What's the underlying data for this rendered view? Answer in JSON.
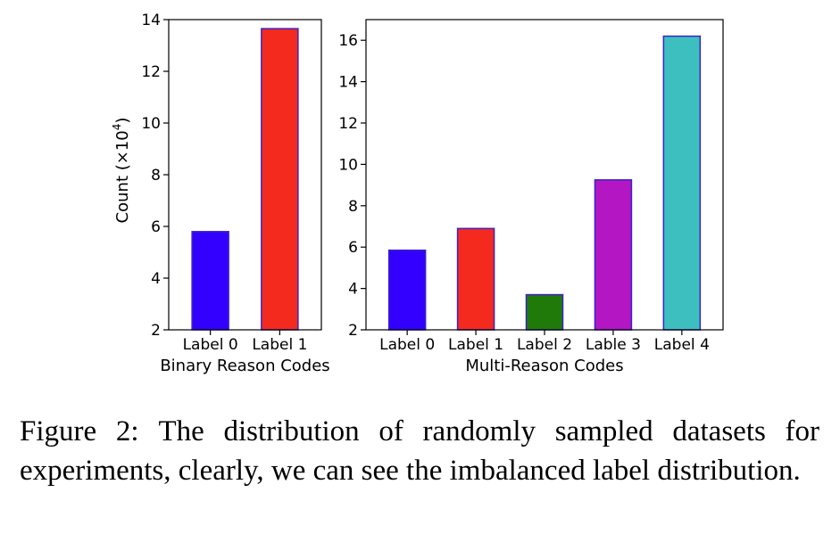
{
  "chart_data": [
    {
      "type": "bar",
      "categories": [
        "Label 0",
        "Label 1"
      ],
      "values": [
        5.8,
        13.65
      ],
      "colors": [
        "#3300ff",
        "#f52a1f"
      ],
      "edge_color": "#3a22c9",
      "title": "",
      "xlabel": "Binary Reason Codes",
      "ylabel_prefix": "Count (×10",
      "ylabel_exp": "4",
      "ylabel_suffix": ")",
      "ylim": [
        2,
        14
      ],
      "yticks": [
        2,
        4,
        6,
        8,
        10,
        12,
        14
      ],
      "grid": false
    },
    {
      "type": "bar",
      "categories": [
        "Label 0",
        "Label 1",
        "Label 2",
        "Lable 3",
        "Label 4"
      ],
      "values": [
        5.85,
        6.9,
        3.7,
        9.25,
        16.2
      ],
      "colors": [
        "#3300ff",
        "#f52a1f",
        "#1f7a0a",
        "#b316c2",
        "#3dbfbf"
      ],
      "edge_color": "#3a22c9",
      "title": "",
      "xlabel": "Multi-Reason Codes",
      "ylabel": "",
      "ylim": [
        2,
        17
      ],
      "yticks": [
        2,
        4,
        6,
        8,
        10,
        12,
        14,
        16
      ],
      "grid": false
    }
  ],
  "caption": {
    "label": "Figure 2:",
    "text": "The distribution of randomly sampled datasets for experiments, clearly, we can see the imbalanced label distribution."
  }
}
